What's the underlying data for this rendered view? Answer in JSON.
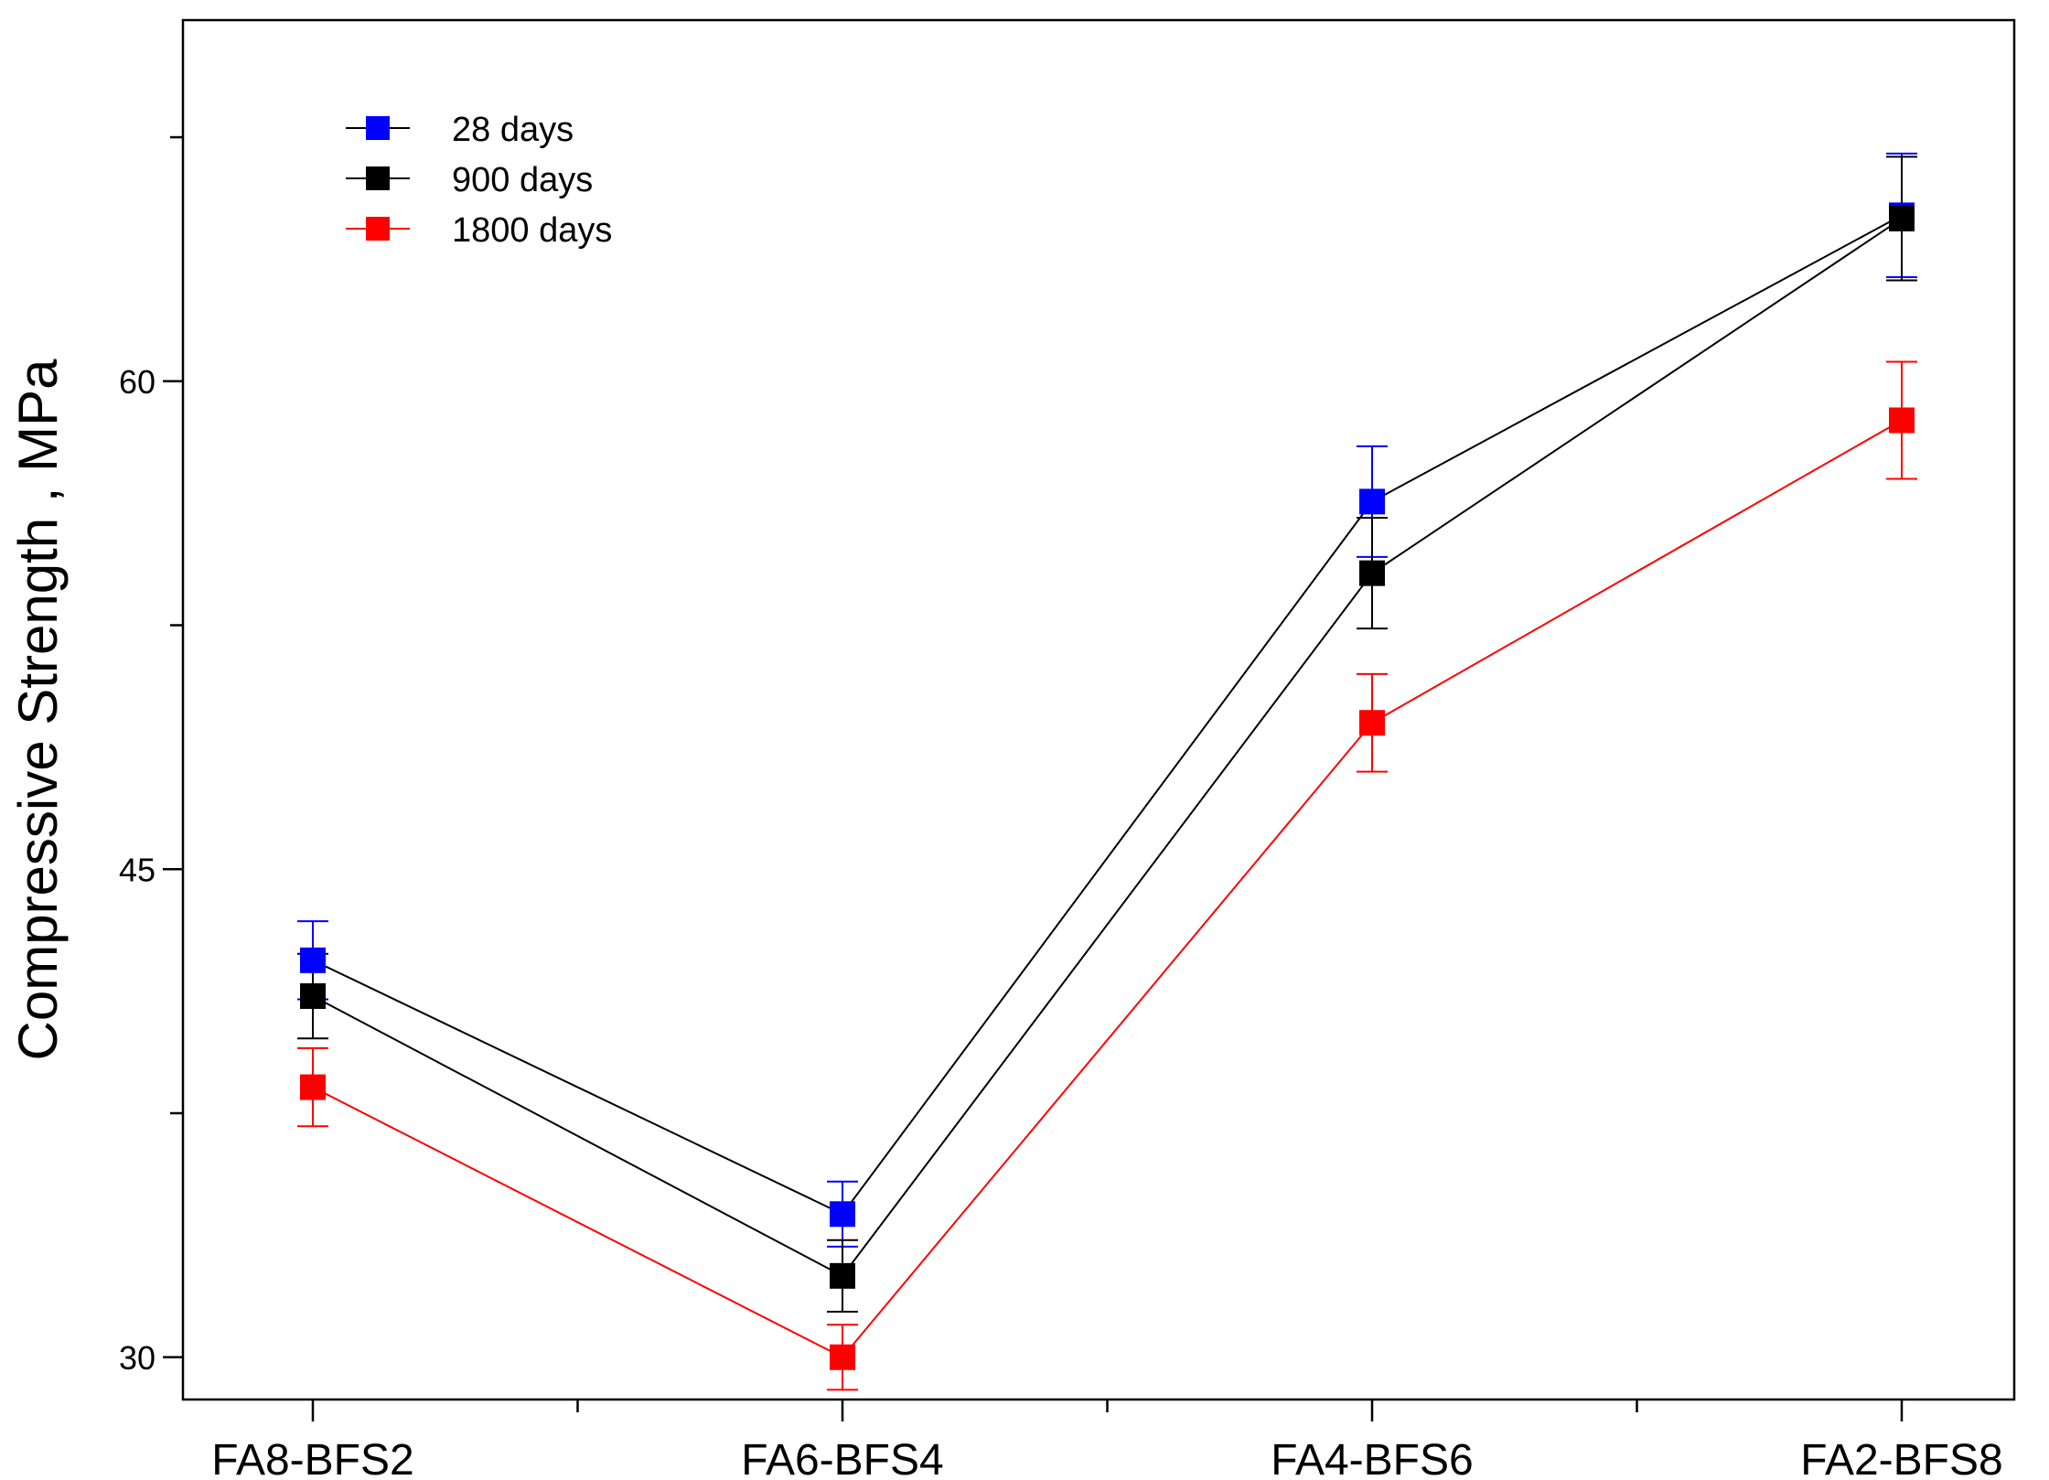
{
  "chart_data": {
    "type": "line",
    "title": "",
    "xlabel": "",
    "ylabel": "Compressive Strength , MPa",
    "categories": [
      "FA8-BFS2",
      "FA6-BFS4",
      "FA4-BFS6",
      "FA2-BFS8"
    ],
    "ylim": [
      28.7,
      71.1
    ],
    "yticks": [
      30,
      45,
      60
    ],
    "y_minor_ticks": [
      37.5,
      52.5,
      67.5
    ],
    "legend_position": "top-left",
    "series": [
      {
        "name": "28 days",
        "color": "#0000ff",
        "line_color": "#000000",
        "values": [
          42.2,
          34.4,
          56.3,
          65.1
        ],
        "errors": [
          1.2,
          1.0,
          1.7,
          1.9
        ]
      },
      {
        "name": "900 days",
        "color": "#000000",
        "line_color": "#000000",
        "values": [
          41.1,
          32.5,
          54.1,
          65.0
        ],
        "errors": [
          1.3,
          1.1,
          1.7,
          1.9
        ]
      },
      {
        "name": "1800 days",
        "color": "#ff0000",
        "line_color": "#ff0000",
        "values": [
          38.3,
          30.0,
          49.5,
          58.8
        ],
        "errors": [
          1.2,
          1.0,
          1.5,
          1.8
        ]
      }
    ]
  }
}
